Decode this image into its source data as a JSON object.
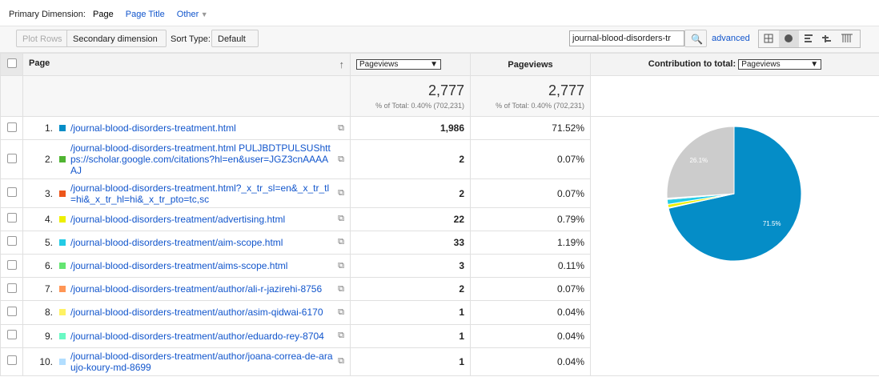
{
  "primary_dimension": {
    "label": "Primary Dimension:",
    "options": [
      "Page",
      "Page Title",
      "Other"
    ]
  },
  "toolbar": {
    "plot_rows": "Plot Rows",
    "secondary_dimension": "Secondary dimension",
    "sort_type_label": "Sort Type:",
    "sort_type": "Default",
    "search": "journal-blood-disorders-tr",
    "advanced": "advanced"
  },
  "table": {
    "headers": {
      "page": "Page",
      "metric_select": "Pageviews",
      "pageviews": "Pageviews",
      "contribution_label": "Contribution to total:",
      "contribution_select": "Pageviews"
    },
    "summary": [
      {
        "value": "2,777",
        "note": "% of Total: 0.40% (702,231)"
      },
      {
        "value": "2,777",
        "note": "% of Total: 0.40% (702,231)"
      }
    ],
    "rows": [
      {
        "index": "1.",
        "color": "#058dc7",
        "page": "/journal-blood-disorders-treatment.html",
        "pageviews": "1,986",
        "percent": "71.52%"
      },
      {
        "index": "2.",
        "color": "#50b432",
        "page": "/journal-blood-disorders-treatment.html PULJBDTPULSUShttps://scholar.google.com/citations?hl=en&user=JGZ3cnAAAAAJ",
        "pageviews": "2",
        "percent": "0.07%"
      },
      {
        "index": "3.",
        "color": "#ed561b",
        "page": "/journal-blood-disorders-treatment.html?_x_tr_sl=en&_x_tr_tl=hi&_x_tr_hl=hi&_x_tr_pto=tc,sc",
        "pageviews": "2",
        "percent": "0.07%"
      },
      {
        "index": "4.",
        "color": "#edef00",
        "page": "/journal-blood-disorders-treatment/advertising.html",
        "pageviews": "22",
        "percent": "0.79%"
      },
      {
        "index": "5.",
        "color": "#24cbe5",
        "page": "/journal-blood-disorders-treatment/aim-scope.html",
        "pageviews": "33",
        "percent": "1.19%"
      },
      {
        "index": "6.",
        "color": "#64e572",
        "page": "/journal-blood-disorders-treatment/aims-scope.html",
        "pageviews": "3",
        "percent": "0.11%"
      },
      {
        "index": "7.",
        "color": "#ff9655",
        "page": "/journal-blood-disorders-treatment/author/ali-r-jazirehi-8756",
        "pageviews": "2",
        "percent": "0.07%"
      },
      {
        "index": "8.",
        "color": "#fff263",
        "page": "/journal-blood-disorders-treatment/author/asim-qidwai-6170",
        "pageviews": "1",
        "percent": "0.04%"
      },
      {
        "index": "9.",
        "color": "#6af9c4",
        "page": "/journal-blood-disorders-treatment/author/eduardo-rey-8704",
        "pageviews": "1",
        "percent": "0.04%"
      },
      {
        "index": "10.",
        "color": "#b2deff",
        "page": "/journal-blood-disorders-treatment/author/joana-correa-de-araujo-koury-md-8699",
        "pageviews": "1",
        "percent": "0.04%"
      }
    ]
  },
  "pie": {
    "slices": [
      {
        "value": 71.52,
        "color": "#058dc7",
        "label": "71.5%"
      },
      {
        "value": 0.07,
        "color": "#50b432"
      },
      {
        "value": 0.07,
        "color": "#ed561b"
      },
      {
        "value": 0.79,
        "color": "#edef00"
      },
      {
        "value": 1.19,
        "color": "#24cbe5"
      },
      {
        "value": 0.11,
        "color": "#64e572"
      },
      {
        "value": 0.07,
        "color": "#ff9655"
      },
      {
        "value": 0.04,
        "color": "#fff263"
      },
      {
        "value": 0.04,
        "color": "#6af9c4"
      },
      {
        "value": 0.04,
        "color": "#b2deff"
      },
      {
        "value": 26.06,
        "color": "#cccccc",
        "label": "26.1%"
      }
    ]
  }
}
